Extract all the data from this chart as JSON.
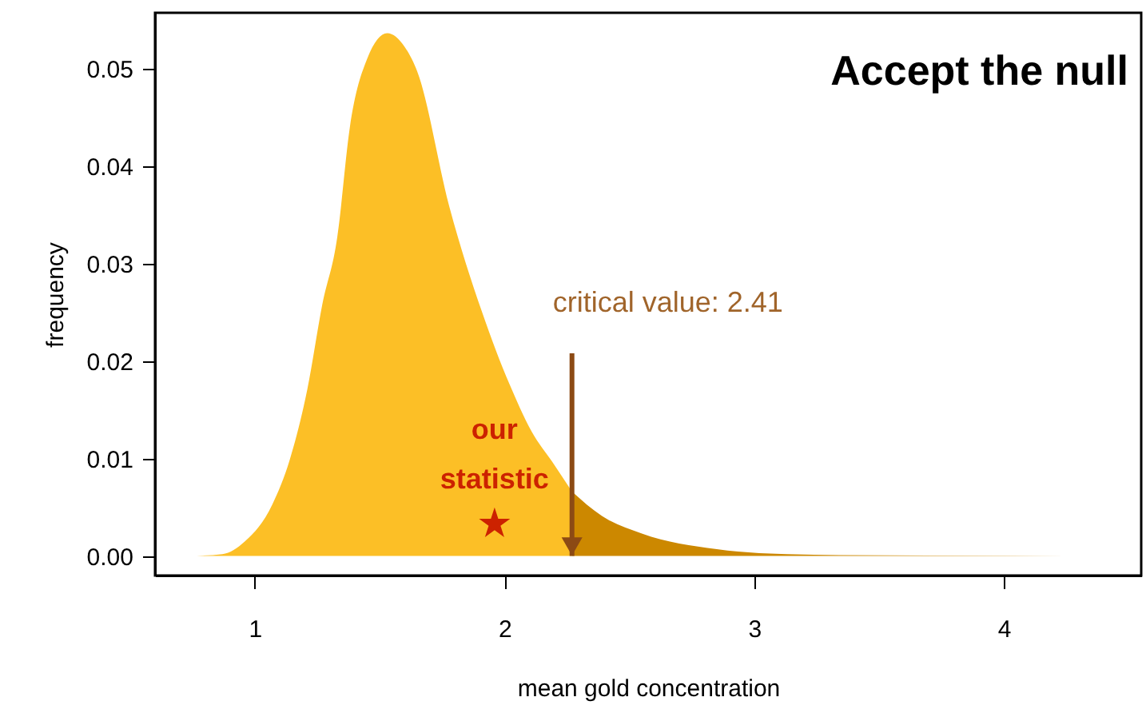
{
  "chart_data": {
    "type": "area",
    "title": "Accept the null",
    "xlabel": "mean gold concentration",
    "ylabel": "frequency",
    "xlim": [
      0.6,
      4.55
    ],
    "ylim": [
      -0.002,
      0.0557
    ],
    "xticks": [
      1,
      2,
      3,
      4
    ],
    "yticks": [
      {
        "value": 0,
        "label": "0.00"
      },
      {
        "value": 0.01,
        "label": "0.01"
      },
      {
        "value": 0.02,
        "label": "0.02"
      },
      {
        "value": 0.03,
        "label": "0.03"
      },
      {
        "value": 0.04,
        "label": "0.04"
      },
      {
        "value": 0.05,
        "label": "0.05"
      }
    ],
    "series": [
      {
        "color": "#fcbf26",
        "x": [
          0.735,
          0.87,
          0.96,
          1.07,
          1.14,
          1.21,
          1.27,
          1.33,
          1.38,
          1.45,
          1.53,
          1.6,
          1.65,
          1.78,
          1.91,
          2.02,
          2.11,
          2.19,
          2.27
        ],
        "values": [
          0,
          0.0002,
          0.0015,
          0.0053,
          0.0099,
          0.0171,
          0.0258,
          0.0327,
          0.0439,
          0.051,
          0.0536,
          0.0522,
          0.0497,
          0.0357,
          0.025,
          0.0176,
          0.0127,
          0.0097,
          0.0066
        ]
      },
      {
        "color": "#cc8800",
        "x": [
          2.27,
          2.39,
          2.55,
          2.85,
          3.02,
          3.34,
          4.45
        ],
        "values": [
          0.0066,
          0.0041,
          0.0023,
          0.0007,
          0.0003,
          0.0001,
          0
        ]
      },
      {
        "type": "scatter",
        "name": "our statistic",
        "color": "#cc2200",
        "marker": "star",
        "x": [
          1.96
        ],
        "values": [
          0.0033
        ]
      }
    ],
    "ref_lines": [
      {
        "axis": "x",
        "value": 2.27,
        "color": "#8c4a14"
      }
    ],
    "annotations": [
      "critical value: 2.41"
    ]
  }
}
